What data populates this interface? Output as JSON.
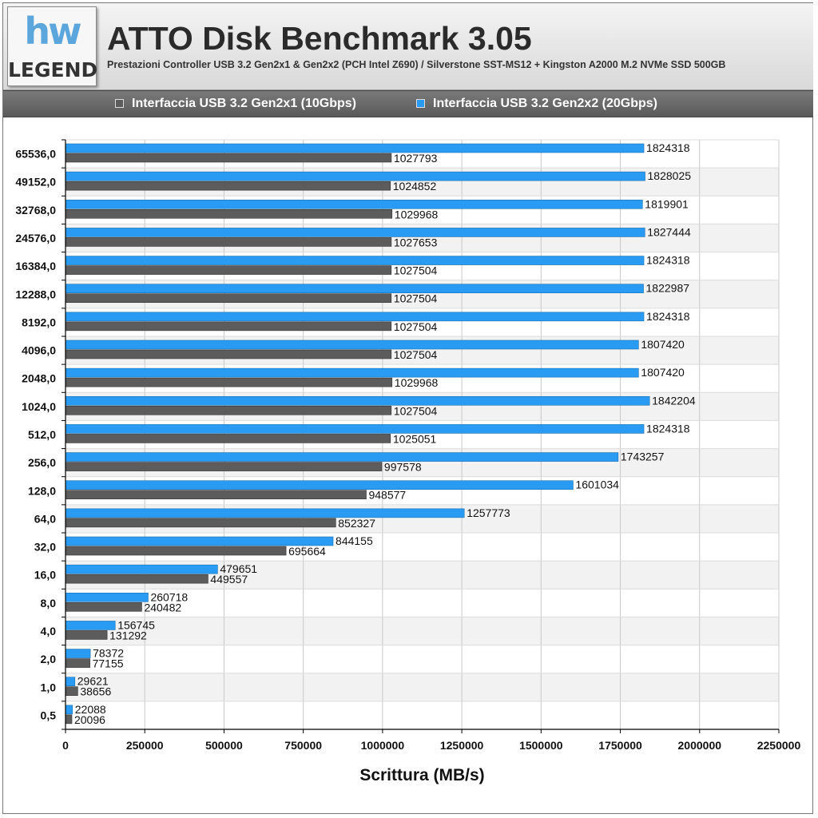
{
  "header": {
    "logo_mark": "hw",
    "logo_word": "LEGEND",
    "title": "ATTO Disk Benchmark 3.05",
    "subtitle": "Prestazioni Controller USB 3.2 Gen2x1 & Gen2x2 (PCH Intel Z690) / Silverstone SST-MS12 + Kingston A2000 M.2 NVMe SSD 500GB"
  },
  "colors": {
    "series_gen2x1": "#5c5c5c",
    "series_gen2x2": "#2a9bf2",
    "row_alt": "#f2f2f2",
    "grid": "#c8c8c8"
  },
  "chart_data": {
    "type": "bar",
    "orientation": "horizontal",
    "title": "ATTO Disk Benchmark 3.05",
    "subtitle": "Prestazioni Controller USB 3.2 Gen2x1 & Gen2x2 (PCH Intel Z690) / Silverstone SST-MS12 + Kingston A2000 M.2 NVMe SSD 500GB",
    "xlabel": "Scrittura (MB/s)",
    "ylabel": "",
    "xlim": [
      0,
      2250000
    ],
    "xticks": [
      "0",
      "250000",
      "500000",
      "750000",
      "1000000",
      "1250000",
      "1500000",
      "1750000",
      "2000000",
      "2250000"
    ],
    "legend_position": "top",
    "grid": true,
    "categories": [
      "65536,0",
      "49152,0",
      "32768,0",
      "24576,0",
      "16384,0",
      "12288,0",
      "8192,0",
      "4096,0",
      "2048,0",
      "1024,0",
      "512,0",
      "256,0",
      "128,0",
      "64,0",
      "32,0",
      "16,0",
      "8,0",
      "4,0",
      "2,0",
      "1,0",
      "0,5"
    ],
    "series": [
      {
        "name": "Interfaccia USB 3.2 Gen2x2 (20Gbps)",
        "values": [
          1824318,
          1828025,
          1819901,
          1827444,
          1824318,
          1822987,
          1824318,
          1807420,
          1807420,
          1842204,
          1824318,
          1743257,
          1601034,
          1257773,
          844155,
          479651,
          260718,
          156745,
          78372,
          29621,
          22088
        ]
      },
      {
        "name": "Interfaccia USB 3.2 Gen2x1 (10Gbps)",
        "values": [
          1027793,
          1024852,
          1029968,
          1027653,
          1027504,
          1027504,
          1027504,
          1027504,
          1029968,
          1027504,
          1025051,
          997578,
          948577,
          852327,
          695664,
          449557,
          240482,
          131292,
          77155,
          38656,
          20096
        ]
      }
    ]
  }
}
